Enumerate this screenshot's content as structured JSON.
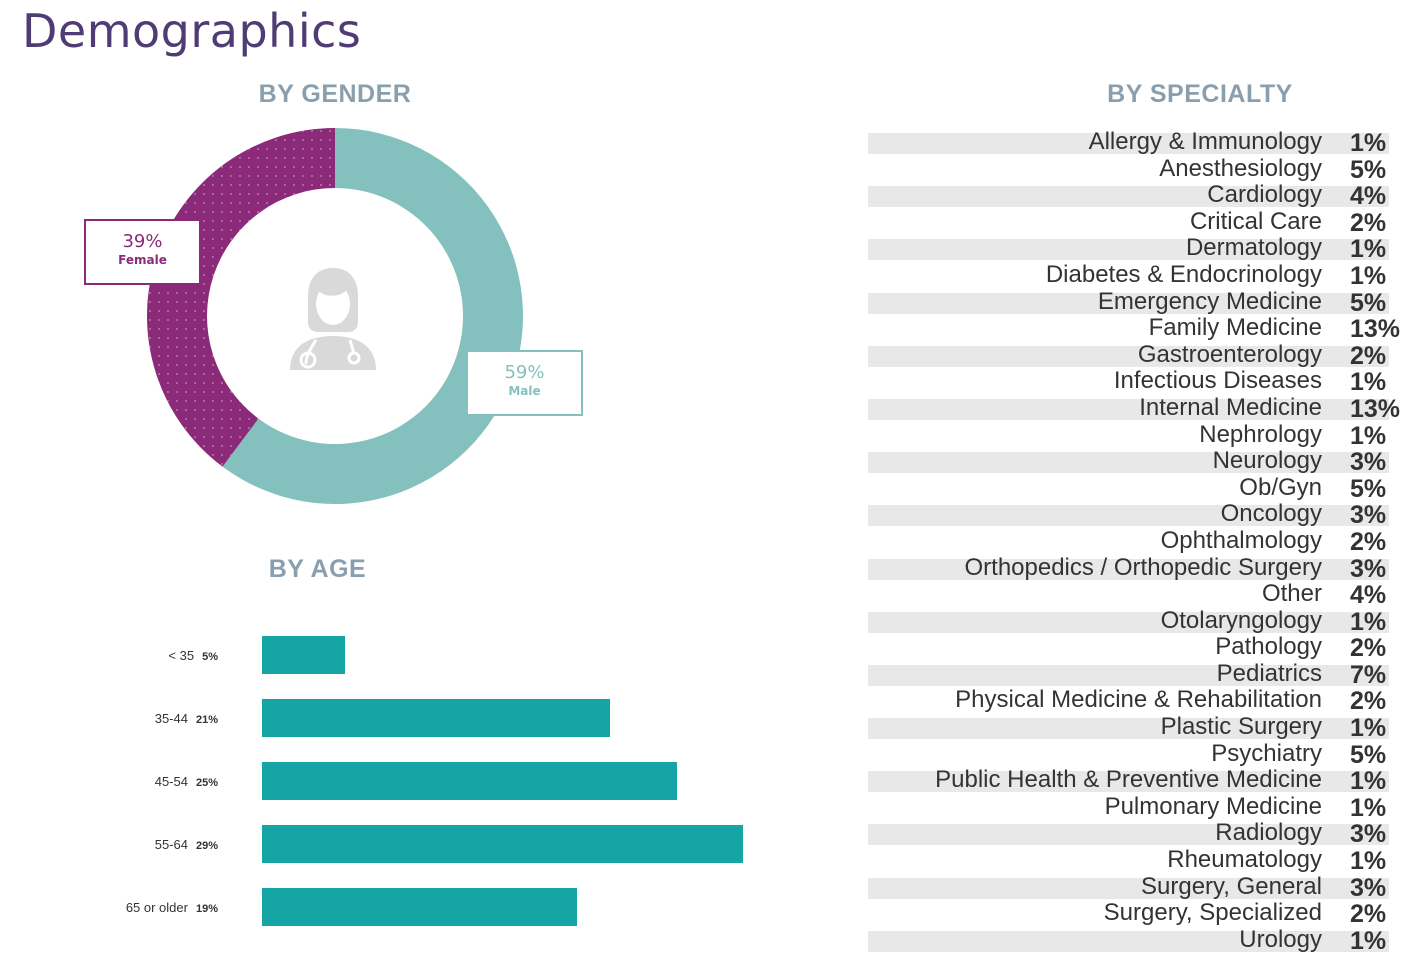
{
  "title": "Demographics",
  "gender": {
    "heading": "BY GENDER",
    "female": {
      "pct": "39%",
      "label": "Female"
    },
    "male": {
      "pct": "59%",
      "label": "Male"
    }
  },
  "age": {
    "heading": "BY AGE"
  },
  "specialty": {
    "heading": "BY SPECIALTY"
  },
  "colors": {
    "female": "#8b2a78",
    "male": "#84c0bd",
    "age_bar": "#16a5a5",
    "title": "#4f3c75",
    "heading": "#8a9fae",
    "stripe": "#e8e8e8",
    "icon": "#d9d9d9"
  },
  "icon": "doctor-avatar-icon",
  "chart_data": [
    {
      "type": "pie",
      "title": "BY GENDER",
      "categories": [
        "Female",
        "Male"
      ],
      "values": [
        39,
        59
      ]
    },
    {
      "type": "bar",
      "title": "BY AGE",
      "categories": [
        "< 35",
        "35-44",
        "45-54",
        "55-64",
        "65 or older"
      ],
      "values": [
        5,
        21,
        25,
        29,
        19
      ],
      "value_labels": [
        "5%",
        "21%",
        "25%",
        "29%",
        "19%"
      ]
    },
    {
      "type": "table",
      "title": "BY SPECIALTY",
      "categories": [
        "Allergy & Immunology",
        "Anesthesiology",
        "Cardiology",
        "Critical Care",
        "Dermatology",
        "Diabetes & Endocrinology",
        "Emergency Medicine",
        "Family Medicine",
        "Gastroenterology",
        "Infectious Diseases",
        "Internal Medicine",
        "Nephrology",
        "Neurology",
        "Ob/Gyn",
        "Oncology",
        "Ophthalmology",
        "Orthopedics / Orthopedic Surgery",
        "Other",
        "Otolaryngology",
        "Pathology",
        "Pediatrics",
        "Physical Medicine & Rehabilitation",
        "Plastic Surgery",
        "Psychiatry",
        "Public Health & Preventive Medicine",
        "Pulmonary Medicine",
        "Radiology",
        "Rheumatology",
        "Surgery, General",
        "Surgery, Specialized",
        "Urology"
      ],
      "values": [
        1,
        5,
        4,
        2,
        1,
        1,
        5,
        13,
        2,
        1,
        13,
        1,
        3,
        5,
        3,
        2,
        3,
        4,
        1,
        2,
        7,
        2,
        1,
        5,
        1,
        1,
        3,
        1,
        3,
        2,
        1
      ],
      "value_labels": [
        "1%",
        "5%",
        "4%",
        "2%",
        "1%",
        "1%",
        "5%",
        "13%",
        "2%",
        "1%",
        "13%",
        "1%",
        "3%",
        "5%",
        "3%",
        "2%",
        "3%",
        "4%",
        "1%",
        "2%",
        "7%",
        "2%",
        "1%",
        "5%",
        "1%",
        "1%",
        "3%",
        "1%",
        "3%",
        "2%",
        "1%"
      ]
    }
  ]
}
